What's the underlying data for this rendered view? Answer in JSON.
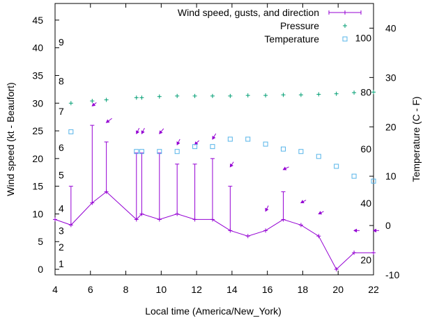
{
  "chart_data": {
    "type": "line",
    "title": "",
    "xlabel": "Local time (America/New_York)",
    "ylabel": "Wind speed (kt - Beaufort)",
    "y2label": "Temperature (C - F)",
    "xlim": [
      4,
      22
    ],
    "ylim": [
      -1,
      48
    ],
    "y2lim": [
      -10,
      45
    ],
    "x_ticks": [
      "4",
      "6",
      "8",
      "10",
      "12",
      "14",
      "16",
      "18",
      "20",
      "22"
    ],
    "y_ticks": [
      "0",
      "5",
      "10",
      "15",
      "20",
      "25",
      "30",
      "35",
      "40",
      "45"
    ],
    "y2_ticks": [
      "-10",
      "0",
      "10",
      "20",
      "30",
      "40"
    ],
    "beaufort_labels": [
      {
        "text": "1",
        "y": 1
      },
      {
        "text": "2",
        "y": 4
      },
      {
        "text": "3",
        "y": 7
      },
      {
        "text": "4",
        "y": 11
      },
      {
        "text": "5",
        "y": 17
      },
      {
        "text": "6",
        "y": 22
      },
      {
        "text": "7",
        "y": 28.5
      },
      {
        "text": "8",
        "y": 34
      },
      {
        "text": "9",
        "y": 41
      }
    ],
    "fahrenheit_labels": [
      {
        "text": "20",
        "y": -7
      },
      {
        "text": "40",
        "y": 4.5
      },
      {
        "text": "60",
        "y": 15.5
      },
      {
        "text": "80",
        "y": 27
      },
      {
        "text": "100",
        "y": 38
      }
    ],
    "legend_position": "top-right",
    "series": [
      {
        "name": "Wind speed, gusts, and direction",
        "color": "#9400d3",
        "x": [
          4.0,
          4.9,
          6.1,
          6.9,
          8.6,
          8.9,
          9.9,
          10.9,
          11.9,
          12.9,
          13.9,
          14.9,
          15.9,
          16.9,
          17.9,
          18.9,
          19.9,
          20.9,
          22.0
        ],
        "speed": [
          9,
          8,
          12,
          14,
          9,
          10,
          9,
          10,
          9,
          9,
          7,
          6,
          7,
          9,
          8,
          6,
          0,
          3,
          3
        ],
        "gusts": [
          null,
          15,
          26,
          23,
          21,
          21,
          21,
          19,
          19,
          20,
          15,
          null,
          null,
          14,
          null,
          null,
          null,
          null,
          null
        ],
        "direction_arrows": [
          {
            "x": 6.1,
            "y": 29.5,
            "dx": -1.5,
            "dy": -1.2
          },
          {
            "x": 6.9,
            "y": 26.5,
            "dx": -2,
            "dy": -1.5
          },
          {
            "x": 8.6,
            "y": 24.5,
            "dx": -1,
            "dy": -2
          },
          {
            "x": 8.9,
            "y": 24.5,
            "dx": -1,
            "dy": -2
          },
          {
            "x": 9.9,
            "y": 24.5,
            "dx": -1.5,
            "dy": -1.8
          },
          {
            "x": 10.9,
            "y": 22.5,
            "dx": -1,
            "dy": -2
          },
          {
            "x": 11.9,
            "y": 22.5,
            "dx": -1.5,
            "dy": -1.5
          },
          {
            "x": 12.9,
            "y": 23.5,
            "dx": -1.2,
            "dy": -2
          },
          {
            "x": 13.9,
            "y": 18.5,
            "dx": -1.2,
            "dy": -1.8
          },
          {
            "x": 15.9,
            "y": 10.5,
            "dx": -1,
            "dy": -2
          },
          {
            "x": 16.9,
            "y": 18.0,
            "dx": -2,
            "dy": -1
          },
          {
            "x": 17.9,
            "y": 12.0,
            "dx": -1.8,
            "dy": -1
          },
          {
            "x": 18.9,
            "y": 10.0,
            "dx": -1.8,
            "dy": -0.9
          },
          {
            "x": 20.9,
            "y": 7.0,
            "dx": -2,
            "dy": 0
          },
          {
            "x": 22.0,
            "y": 7.0,
            "dx": -2,
            "dy": 0
          }
        ]
      },
      {
        "name": "Pressure",
        "color": "#009e73",
        "x": [
          4.9,
          6.1,
          6.9,
          8.6,
          8.9,
          9.9,
          10.9,
          11.9,
          12.9,
          13.9,
          14.9,
          15.9,
          16.9,
          17.9,
          18.9,
          19.9,
          20.9,
          22.0
        ],
        "values": [
          30.0,
          30.4,
          30.6,
          31.0,
          31.0,
          31.2,
          31.3,
          31.3,
          31.3,
          31.3,
          31.4,
          31.4,
          31.5,
          31.5,
          31.6,
          31.7,
          31.9,
          32.0
        ]
      },
      {
        "name": "Temperature",
        "color": "#56b4e9",
        "x": [
          4.9,
          8.6,
          8.9,
          9.9,
          10.9,
          11.9,
          12.9,
          13.9,
          14.9,
          15.9,
          16.9,
          17.9,
          18.9,
          19.9,
          20.9,
          22.0
        ],
        "values": [
          19,
          15,
          15,
          15,
          15,
          16,
          16,
          17.5,
          17.5,
          16.5,
          15.5,
          15,
          14,
          12,
          10,
          9
        ]
      }
    ]
  }
}
